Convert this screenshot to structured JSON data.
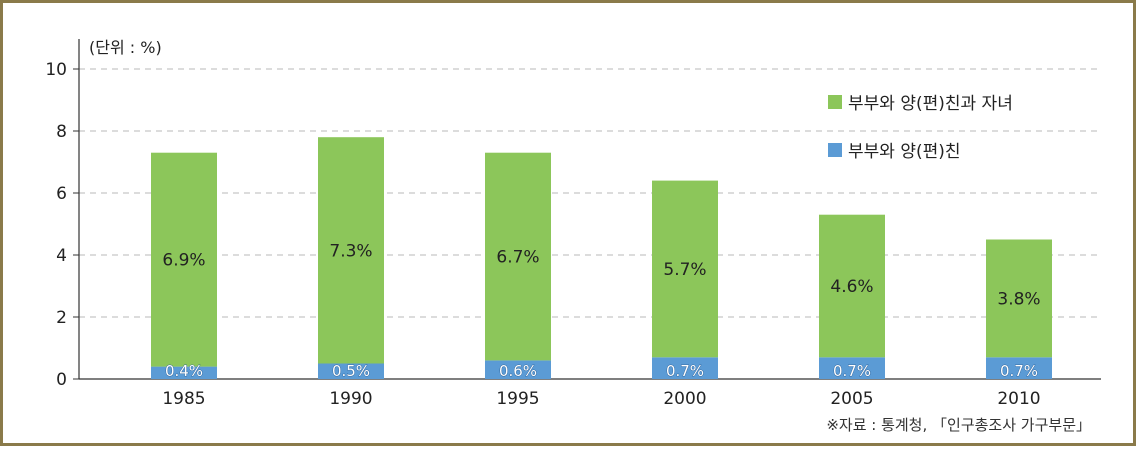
{
  "chart_data": {
    "type": "bar",
    "stacked": true,
    "unit_label": "(단위 : %)",
    "categories": [
      "1985",
      "1990",
      "1995",
      "2000",
      "2005",
      "2010"
    ],
    "series": [
      {
        "name": "부부와 양(편)친",
        "values": [
          0.4,
          0.5,
          0.6,
          0.7,
          0.7,
          0.7
        ],
        "labels": [
          "0.4%",
          "0.5%",
          "0.6%",
          "0.7%",
          "0.7%",
          "0.7%"
        ],
        "color": "#5b9bd5"
      },
      {
        "name": "부부와 양(편)친과 자녀",
        "values": [
          6.9,
          7.3,
          6.7,
          5.7,
          4.6,
          3.8
        ],
        "labels": [
          "6.9%",
          "7.3%",
          "6.7%",
          "5.7%",
          "4.6%",
          "3.8%"
        ],
        "color": "#8cc65a"
      }
    ],
    "ylim": [
      0,
      10
    ],
    "yticks": [
      "0",
      "2",
      "4",
      "6",
      "8",
      "10"
    ],
    "grid": true,
    "legend_position": "top-right",
    "source": "※자료 : 통계청, 「인구총조사 가구부문」"
  }
}
